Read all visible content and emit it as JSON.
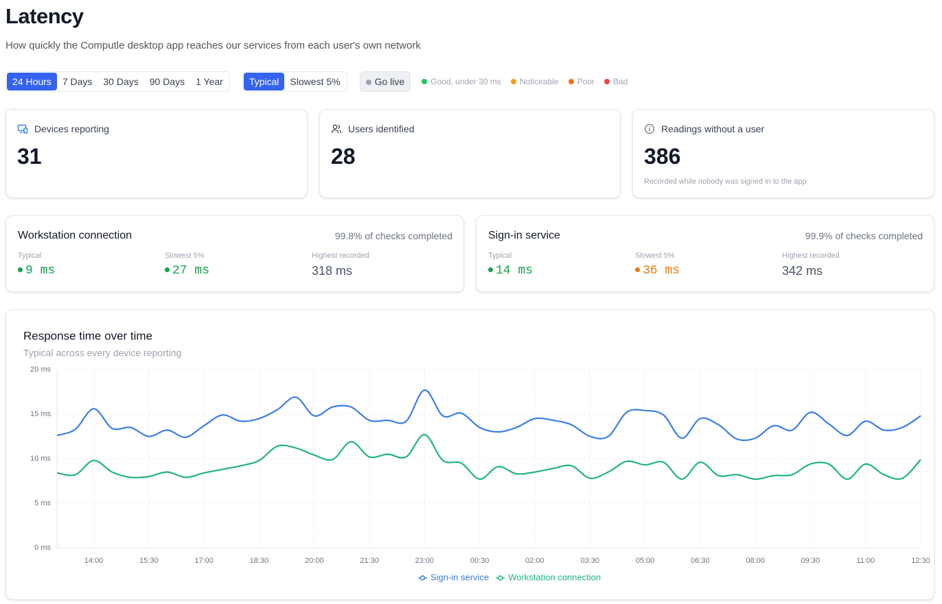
{
  "header": {
    "title": "Latency",
    "subtitle": "How quickly the Computle desktop app reaches our services from each user's own network"
  },
  "controls": {
    "ranges": [
      "24 Hours",
      "7 Days",
      "30 Days",
      "90 Days",
      "1 Year"
    ],
    "active_range": 0,
    "modes": [
      "Typical",
      "Slowest 5%"
    ],
    "active_mode": 0,
    "live": "Go live",
    "statuses": [
      {
        "label": "Good, under 30 ms",
        "color": "#22c55e"
      },
      {
        "label": "Noticeable",
        "color": "#f59e0b"
      },
      {
        "label": "Poor",
        "color": "#f97316"
      },
      {
        "label": "Bad",
        "color": "#ef4444"
      }
    ]
  },
  "stats": [
    {
      "label": "Devices reporting",
      "value": 31
    },
    {
      "label": "Users identified",
      "value": 28
    },
    {
      "label": "Readings without a user",
      "value": 386,
      "note": "Recorded while nobody was signed in to the app"
    }
  ],
  "services": [
    {
      "name": "Workstation connection",
      "completed": "99.8% of checks completed",
      "metrics": [
        {
          "label": "Typical",
          "value": "9 ms",
          "color": "#16a34a"
        },
        {
          "label": "Slowest 5%",
          "value": "27 ms",
          "color": "#16a34a"
        },
        {
          "label": "Highest recorded",
          "value": "318 ms"
        }
      ]
    },
    {
      "name": "Sign-in service",
      "completed": "99.9% of checks completed",
      "metrics": [
        {
          "label": "Typical",
          "value": "14 ms",
          "color": "#16a34a"
        },
        {
          "label": "Slowest 5%",
          "value": "36 ms",
          "color": "#ea7c0c"
        },
        {
          "label": "Highest recorded",
          "value": "342 ms"
        }
      ]
    }
  ],
  "chart_data": {
    "type": "line",
    "title": "Response time over time",
    "subtitle": "Typical across every device reporting",
    "categories": [
      null,
      null,
      "14:00",
      null,
      null,
      "15:30",
      null,
      null,
      "17:00",
      null,
      null,
      "18:30",
      null,
      null,
      "20:00",
      null,
      null,
      "21:30",
      null,
      null,
      "23:00",
      null,
      null,
      "00:30",
      null,
      null,
      "02:00",
      null,
      null,
      "03:30",
      null,
      null,
      "05:00",
      null,
      null,
      "06:30",
      null,
      null,
      "08:00",
      null,
      null,
      "09:30",
      null,
      null,
      "11:00",
      null,
      null,
      "12:30"
    ],
    "series": [
      {
        "name": "Sign-in service",
        "color": "#3b7de6",
        "values": [
          12.6,
          13.3,
          15.6,
          13.4,
          13.5,
          12.5,
          13.2,
          12.4,
          13.7,
          14.9,
          14.2,
          14.5,
          15.5,
          16.9,
          14.8,
          15.8,
          15.8,
          14.3,
          14.3,
          14.2,
          17.7,
          14.8,
          15.1,
          13.5,
          13.0,
          13.5,
          14.5,
          14.3,
          13.8,
          12.5,
          12.5,
          15.2,
          15.4,
          14.9,
          12.3,
          14.5,
          13.8,
          12.2,
          12.3,
          13.7,
          13.2,
          15.2,
          13.9,
          12.6,
          14.2,
          13.2,
          13.5,
          14.8
        ]
      },
      {
        "name": "Workstation connection",
        "color": "#1fb57f",
        "values": [
          8.4,
          8.2,
          9.8,
          8.5,
          7.9,
          8.0,
          8.5,
          7.9,
          8.4,
          8.8,
          9.2,
          9.8,
          11.4,
          11.2,
          10.4,
          9.9,
          11.9,
          10.2,
          10.5,
          10.2,
          12.7,
          9.8,
          9.5,
          7.7,
          9.1,
          8.3,
          8.5,
          8.9,
          9.2,
          7.8,
          8.5,
          9.7,
          9.3,
          9.6,
          7.7,
          9.6,
          8.1,
          8.2,
          7.7,
          8.1,
          8.2,
          9.4,
          9.4,
          7.7,
          9.4,
          8.2,
          7.8,
          9.9
        ]
      }
    ],
    "ylim": [
      0,
      20
    ],
    "yticks": [
      {
        "value": 0,
        "label": "0 ms"
      },
      {
        "value": 5,
        "label": "5 ms"
      },
      {
        "value": 10,
        "label": "10 ms"
      },
      {
        "value": 15,
        "label": "15 ms"
      },
      {
        "value": 20,
        "label": "20 ms"
      }
    ],
    "grid": true,
    "legend": "bottom"
  }
}
